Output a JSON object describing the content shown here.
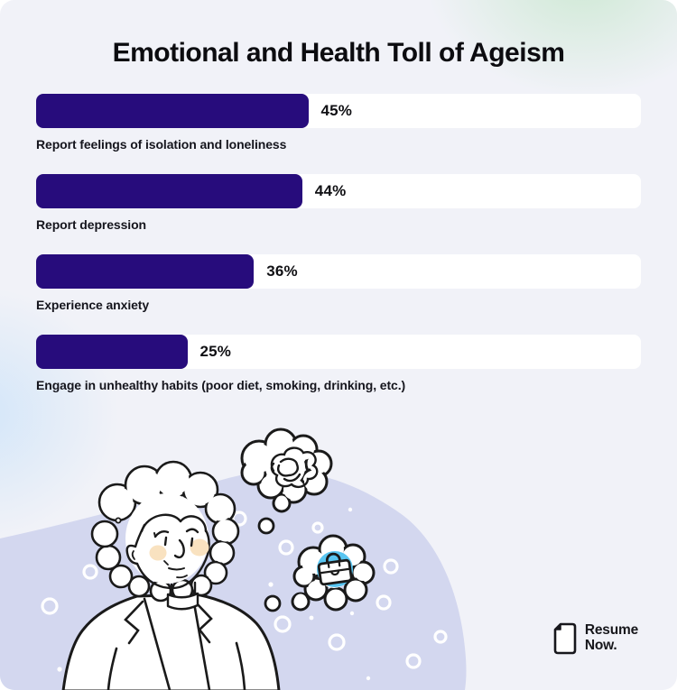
{
  "title": "Emotional and Health Toll of Ageism",
  "chart_data": {
    "type": "bar",
    "orientation": "horizontal",
    "title": "Emotional and Health Toll of Ageism",
    "categories": [
      "Report feelings of isolation and loneliness",
      "Report depression",
      "Experience anxiety",
      "Engage in unhealthy habits (poor diet, smoking, drinking, etc.)"
    ],
    "values": [
      45,
      44,
      36,
      25
    ],
    "value_labels": [
      "45%",
      "44%",
      "36%",
      "25%"
    ],
    "xlim": [
      0,
      100
    ],
    "grid": false,
    "legend": false,
    "bar_color": "#270c7c",
    "track_color": "#ffffff"
  },
  "bars": [
    {
      "label": "Report feelings of isolation and loneliness",
      "pct": "45%"
    },
    {
      "label": "Report depression",
      "pct": "44%"
    },
    {
      "label": "Experience anxiety",
      "pct": "36%"
    },
    {
      "label": "Engage in unhealthy habits (poor diet, smoking, drinking, etc.)",
      "pct": "25%"
    }
  ],
  "logo": {
    "line1": "Resume",
    "line2": "Now.",
    "icon": "document-icon"
  },
  "colors": {
    "background": "#f1f2f8",
    "bar_fill": "#270c7c",
    "bar_track": "#ffffff",
    "blob": "#d3d7ef",
    "green_glow": "#cfe9d5",
    "blue_glow": "#d3e6f9",
    "briefcase_highlight": "#58c5f1",
    "blush": "#f9e2c0",
    "text": "#0c0c10"
  },
  "illustration": {
    "elements": [
      "worried-elderly-woman",
      "tangled-thoughts-bubble",
      "briefcase-thought-bubble",
      "bubble-pattern"
    ]
  }
}
